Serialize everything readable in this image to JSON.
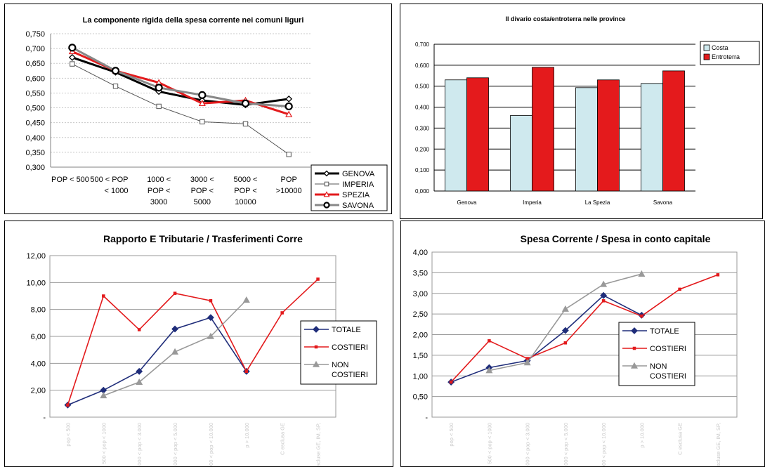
{
  "chart_data": [
    {
      "type": "line",
      "title": "La componente rigida della spesa corrente nei comuni liguri",
      "categories": [
        "POP < 500",
        "500 < POP < 1000",
        "1000 < POP < 3000",
        "3000 < POP < 5000",
        "5000 < POP < 10000",
        "POP >10000"
      ],
      "category_lines": [
        [
          "POP < 500"
        ],
        [
          "500 < POP",
          "< 1000"
        ],
        [
          "1000 <",
          "POP <",
          "3000"
        ],
        [
          "3000 <",
          "POP <",
          "5000"
        ],
        [
          "5000 <",
          "POP <",
          "10000"
        ],
        [
          "POP",
          ">10000"
        ]
      ],
      "ylim": [
        0.3,
        0.75
      ],
      "yticks": [
        "0,300",
        "0,350",
        "0,400",
        "0,450",
        "0,500",
        "0,550",
        "0,600",
        "0,650",
        "0,700",
        "0,750"
      ],
      "legend_position": "bottom-right",
      "series": [
        {
          "name": "GENOVA",
          "values": [
            0.67,
            0.62,
            0.555,
            0.525,
            0.51,
            0.53
          ],
          "color": "#000000",
          "marker": "diamond"
        },
        {
          "name": "IMPERIA",
          "values": [
            0.648,
            0.573,
            0.505,
            0.453,
            0.446,
            0.343
          ],
          "color": "#555555",
          "marker": "square"
        },
        {
          "name": "SPEZIA",
          "values": [
            0.69,
            0.625,
            0.585,
            0.515,
            0.525,
            0.478
          ],
          "color": "#e31a1c",
          "marker": "triangle"
        },
        {
          "name": "SAVONA",
          "values": [
            0.703,
            0.625,
            0.568,
            0.543,
            0.515,
            0.505
          ],
          "color": "#888888",
          "marker": "circle"
        }
      ]
    },
    {
      "type": "bar",
      "title": "Il divario costa/entroterra nelle province",
      "categories": [
        "Genova",
        "Imperia",
        "La Spezia",
        "Savona"
      ],
      "ylim": [
        0,
        0.7
      ],
      "yticks": [
        "0,000",
        "0,100",
        "0,200",
        "0,300",
        "0,400",
        "0,500",
        "0,600",
        "0,700"
      ],
      "legend_position": "right",
      "series": [
        {
          "name": "Costa",
          "values": [
            0.53,
            0.36,
            0.493,
            0.513
          ],
          "color": "#cfe9ee"
        },
        {
          "name": "Entroterra",
          "values": [
            0.54,
            0.59,
            0.53,
            0.573
          ],
          "color": "#e41a1c"
        }
      ]
    },
    {
      "type": "line",
      "title": "Rapporto E Tributarie / Trasferimenti Corre",
      "categories": [
        "pop < 500",
        "500 < pop < 1000",
        "1.000 < pop < 3.000",
        "3.000 < pop < 5.000",
        "5.000 < pop < 10.000",
        "p > 10.000",
        "C esclusa GE",
        "C escluse GE, IM, SP,"
      ],
      "ylim": [
        0,
        12
      ],
      "yticks": [
        "-",
        "2,00",
        "4,00",
        "6,00",
        "8,00",
        "10,00",
        "12,00"
      ],
      "legend_position": "right",
      "series": [
        {
          "name": "TOTALE",
          "values": [
            0.9,
            2.0,
            3.4,
            6.55,
            7.4,
            3.4,
            null,
            null
          ],
          "color": "#1f2d7a",
          "marker": "diamond"
        },
        {
          "name": "COSTIERI",
          "values": [
            0.9,
            9.0,
            6.5,
            9.2,
            8.65,
            3.4,
            7.75,
            10.25
          ],
          "color": "#e31a1c",
          "marker": "square"
        },
        {
          "name": "NON COSTIERI",
          "values": [
            null,
            1.6,
            2.6,
            4.85,
            6.0,
            8.7,
            null,
            null
          ],
          "color": "#999999",
          "marker": "triangle"
        }
      ]
    },
    {
      "type": "line",
      "title": "Spesa Corrente / Spesa in conto capitale",
      "categories": [
        "pop < 500",
        "500 < pop < 1000",
        "1.000 < pop < 3.000",
        "3.000 < pop < 5.000",
        "5.000 < pop < 10.000",
        "p > 10.000",
        "C esclusa GE",
        "C escluse GE, IM, SP,"
      ],
      "ylim": [
        0,
        4
      ],
      "yticks": [
        "-",
        "0,50",
        "1,00",
        "1,50",
        "2,00",
        "2,50",
        "3,00",
        "3,50",
        "4,00"
      ],
      "legend_position": "right",
      "series": [
        {
          "name": "TOTALE",
          "values": [
            0.85,
            1.2,
            1.37,
            2.1,
            2.95,
            2.47,
            null,
            null
          ],
          "color": "#1f2d7a",
          "marker": "diamond"
        },
        {
          "name": "COSTIERI",
          "values": [
            0.85,
            1.85,
            1.42,
            1.8,
            2.82,
            2.45,
            3.1,
            3.45
          ],
          "color": "#e31a1c",
          "marker": "square"
        },
        {
          "name": "NON COSTIERI",
          "values": [
            null,
            1.13,
            1.32,
            2.62,
            3.22,
            3.47,
            null,
            null
          ],
          "color": "#999999",
          "marker": "triangle"
        }
      ]
    }
  ]
}
